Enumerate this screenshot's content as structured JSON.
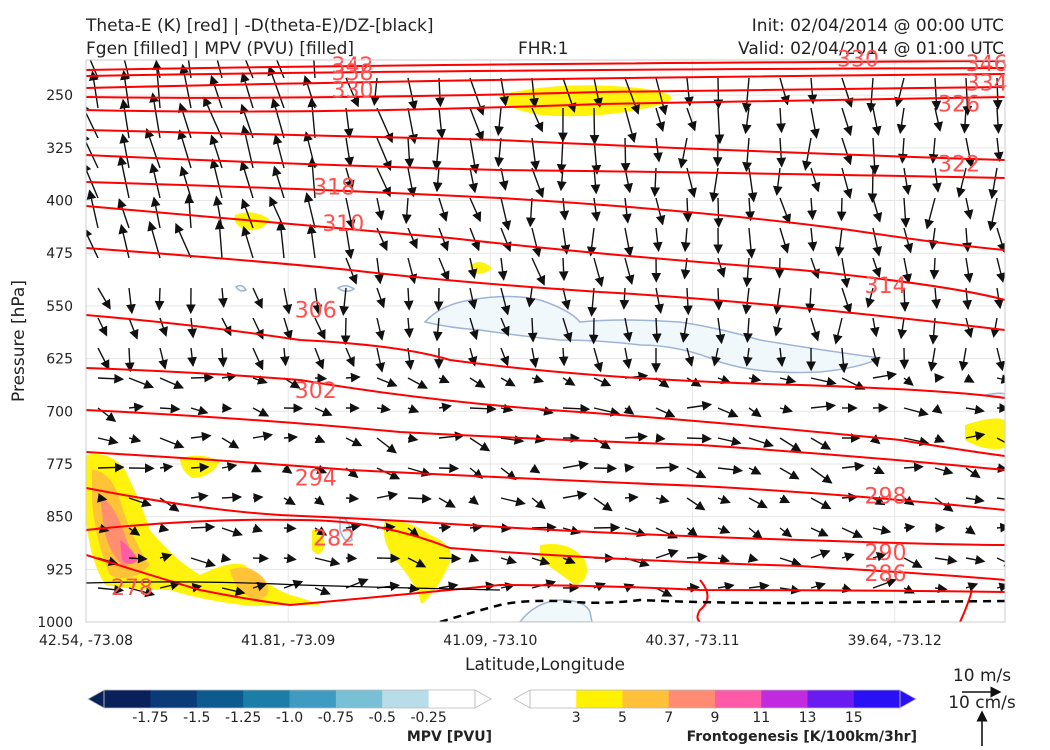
{
  "header": {
    "title_line1": "Theta-E (K) [red] | -D(theta-E)/DZ-[black]",
    "title_line2": "Fgen [filled] | MPV (PVU) [filled]",
    "fhr": "FHR:1",
    "init": "Init: 02/04/2014 @ 00:00 UTC",
    "valid": "Valid: 02/04/2014 @ 01:00 UTC"
  },
  "chart_data": {
    "type": "cross-section",
    "xlabel": "Latitude,Longitude",
    "ylabel": "Pressure [hPa]",
    "x_ticks": [
      "42.54, -73.08",
      "41.81, -73.09",
      "41.09, -73.10",
      "40.37, -73.11",
      "39.64, -73.12"
    ],
    "y_ticks": [
      "250",
      "325",
      "400",
      "475",
      "550",
      "625",
      "700",
      "775",
      "850",
      "925",
      "1000"
    ],
    "ylim": [
      1000,
      200
    ],
    "grid": true,
    "theta_e_color": "#ff0000",
    "theta_e_labels": [
      {
        "label": "342",
        "x": 0.29,
        "p": 207
      },
      {
        "label": "338",
        "x": 0.29,
        "p": 217
      },
      {
        "label": "330",
        "x": 0.29,
        "p": 242
      },
      {
        "label": "318",
        "x": 0.27,
        "p": 380
      },
      {
        "label": "310",
        "x": 0.28,
        "p": 432
      },
      {
        "label": "306",
        "x": 0.25,
        "p": 555
      },
      {
        "label": "302",
        "x": 0.25,
        "p": 670
      },
      {
        "label": "294",
        "x": 0.25,
        "p": 794
      },
      {
        "label": "282",
        "x": 0.27,
        "p": 880
      },
      {
        "label": "278",
        "x": 0.05,
        "p": 950
      },
      {
        "label": "330",
        "x": 0.84,
        "p": 198
      },
      {
        "label": "346",
        "x": 0.98,
        "p": 204
      },
      {
        "label": "334",
        "x": 0.98,
        "p": 232
      },
      {
        "label": "326",
        "x": 0.95,
        "p": 262
      },
      {
        "label": "322",
        "x": 0.95,
        "p": 347
      },
      {
        "label": "314",
        "x": 0.87,
        "p": 520
      },
      {
        "label": "298",
        "x": 0.87,
        "p": 820
      },
      {
        "label": "290",
        "x": 0.87,
        "p": 900
      },
      {
        "label": "286",
        "x": 0.87,
        "p": 930
      }
    ],
    "mpv_colorbar": {
      "label": "MPV [PVU]",
      "ticks": [
        "-1.75",
        "-1.5",
        "-1.25",
        "-1.0",
        "-0.75",
        "-0.5",
        "-0.25"
      ],
      "colors": [
        "#08215a",
        "#0b3a78",
        "#0d5a8f",
        "#1a7ea6",
        "#3f9cc0",
        "#79bfd6",
        "#b9dde8",
        "#ffffff"
      ]
    },
    "fgen_colorbar": {
      "label": "Frontogenesis [K/100km/3hr]",
      "ticks": [
        "3",
        "5",
        "7",
        "9",
        "11",
        "13",
        "15"
      ],
      "colors": [
        "#ffffff",
        "#fff200",
        "#ffc03a",
        "#ff8c72",
        "#ff5aa8",
        "#c02be0",
        "#6a1bf0",
        "#2a10f5"
      ]
    },
    "vector_keys": [
      "10 m/s",
      "10 cm/s"
    ]
  }
}
